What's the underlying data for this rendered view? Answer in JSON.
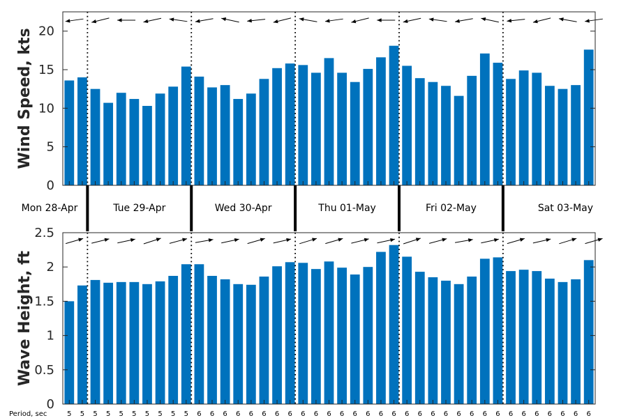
{
  "colors": {
    "bar": "#0072BD",
    "axis": "#262626",
    "arrow": "#000000"
  },
  "chart_data": [
    {
      "type": "bar",
      "id": "wind",
      "ylabel": "Wind Speed, kts",
      "ylim": [
        0,
        22.5
      ],
      "yticks": [
        "0",
        "5",
        "10",
        "15",
        "20"
      ],
      "ytick_values": [
        0,
        5,
        10,
        15,
        20
      ],
      "values": [
        13.6,
        14.0,
        12.5,
        10.7,
        12.0,
        11.2,
        10.3,
        11.9,
        12.8,
        15.4,
        14.1,
        12.7,
        13.0,
        11.2,
        11.9,
        13.8,
        15.2,
        15.8,
        15.6,
        14.6,
        16.5,
        14.6,
        13.4,
        15.1,
        16.6,
        18.1,
        15.5,
        13.9,
        13.4,
        12.9,
        11.6,
        14.2,
        17.1,
        15.9,
        13.8,
        14.9,
        14.6,
        12.9,
        12.5,
        13.0,
        17.6
      ],
      "direction_arrows": "pointing left (westward), one per time step"
    },
    {
      "type": "bar",
      "id": "wave",
      "ylabel": "Wave Height, ft",
      "ylim": [
        0,
        2.5
      ],
      "yticks": [
        "0",
        "0.5",
        "1",
        "1.5",
        "2",
        "2.5"
      ],
      "ytick_values": [
        0,
        0.5,
        1,
        1.5,
        2,
        2.5
      ],
      "values": [
        1.5,
        1.73,
        1.81,
        1.77,
        1.78,
        1.78,
        1.75,
        1.79,
        1.87,
        2.04,
        2.04,
        1.87,
        1.82,
        1.75,
        1.74,
        1.86,
        2.01,
        2.07,
        2.06,
        1.97,
        2.08,
        1.99,
        1.89,
        2.0,
        2.22,
        2.32,
        2.15,
        1.93,
        1.85,
        1.8,
        1.75,
        1.86,
        2.12,
        2.14,
        1.94,
        1.96,
        1.94,
        1.83,
        1.78,
        1.82,
        2.1
      ],
      "direction_arrows": "pointing right (eastward), one per time step",
      "period_label": "Period, sec",
      "periods": [
        "5",
        "5",
        "5",
        "5",
        "5",
        "5",
        "5",
        "5",
        "5",
        "5",
        "6",
        "6",
        "6",
        "6",
        "6",
        "6",
        "6",
        "6",
        "6",
        "6",
        "6",
        "6",
        "6",
        "6",
        "6",
        "6",
        "6",
        "6",
        "6",
        "6",
        "6",
        "6",
        "6",
        "6",
        "6",
        "6",
        "6",
        "6",
        "6",
        "6",
        "6"
      ]
    }
  ],
  "days": [
    "Mon 28-Apr",
    "Tue 29-Apr",
    "Wed 30-Apr",
    "Thu 01-May",
    "Fri 02-May",
    "Sat 03-May"
  ]
}
